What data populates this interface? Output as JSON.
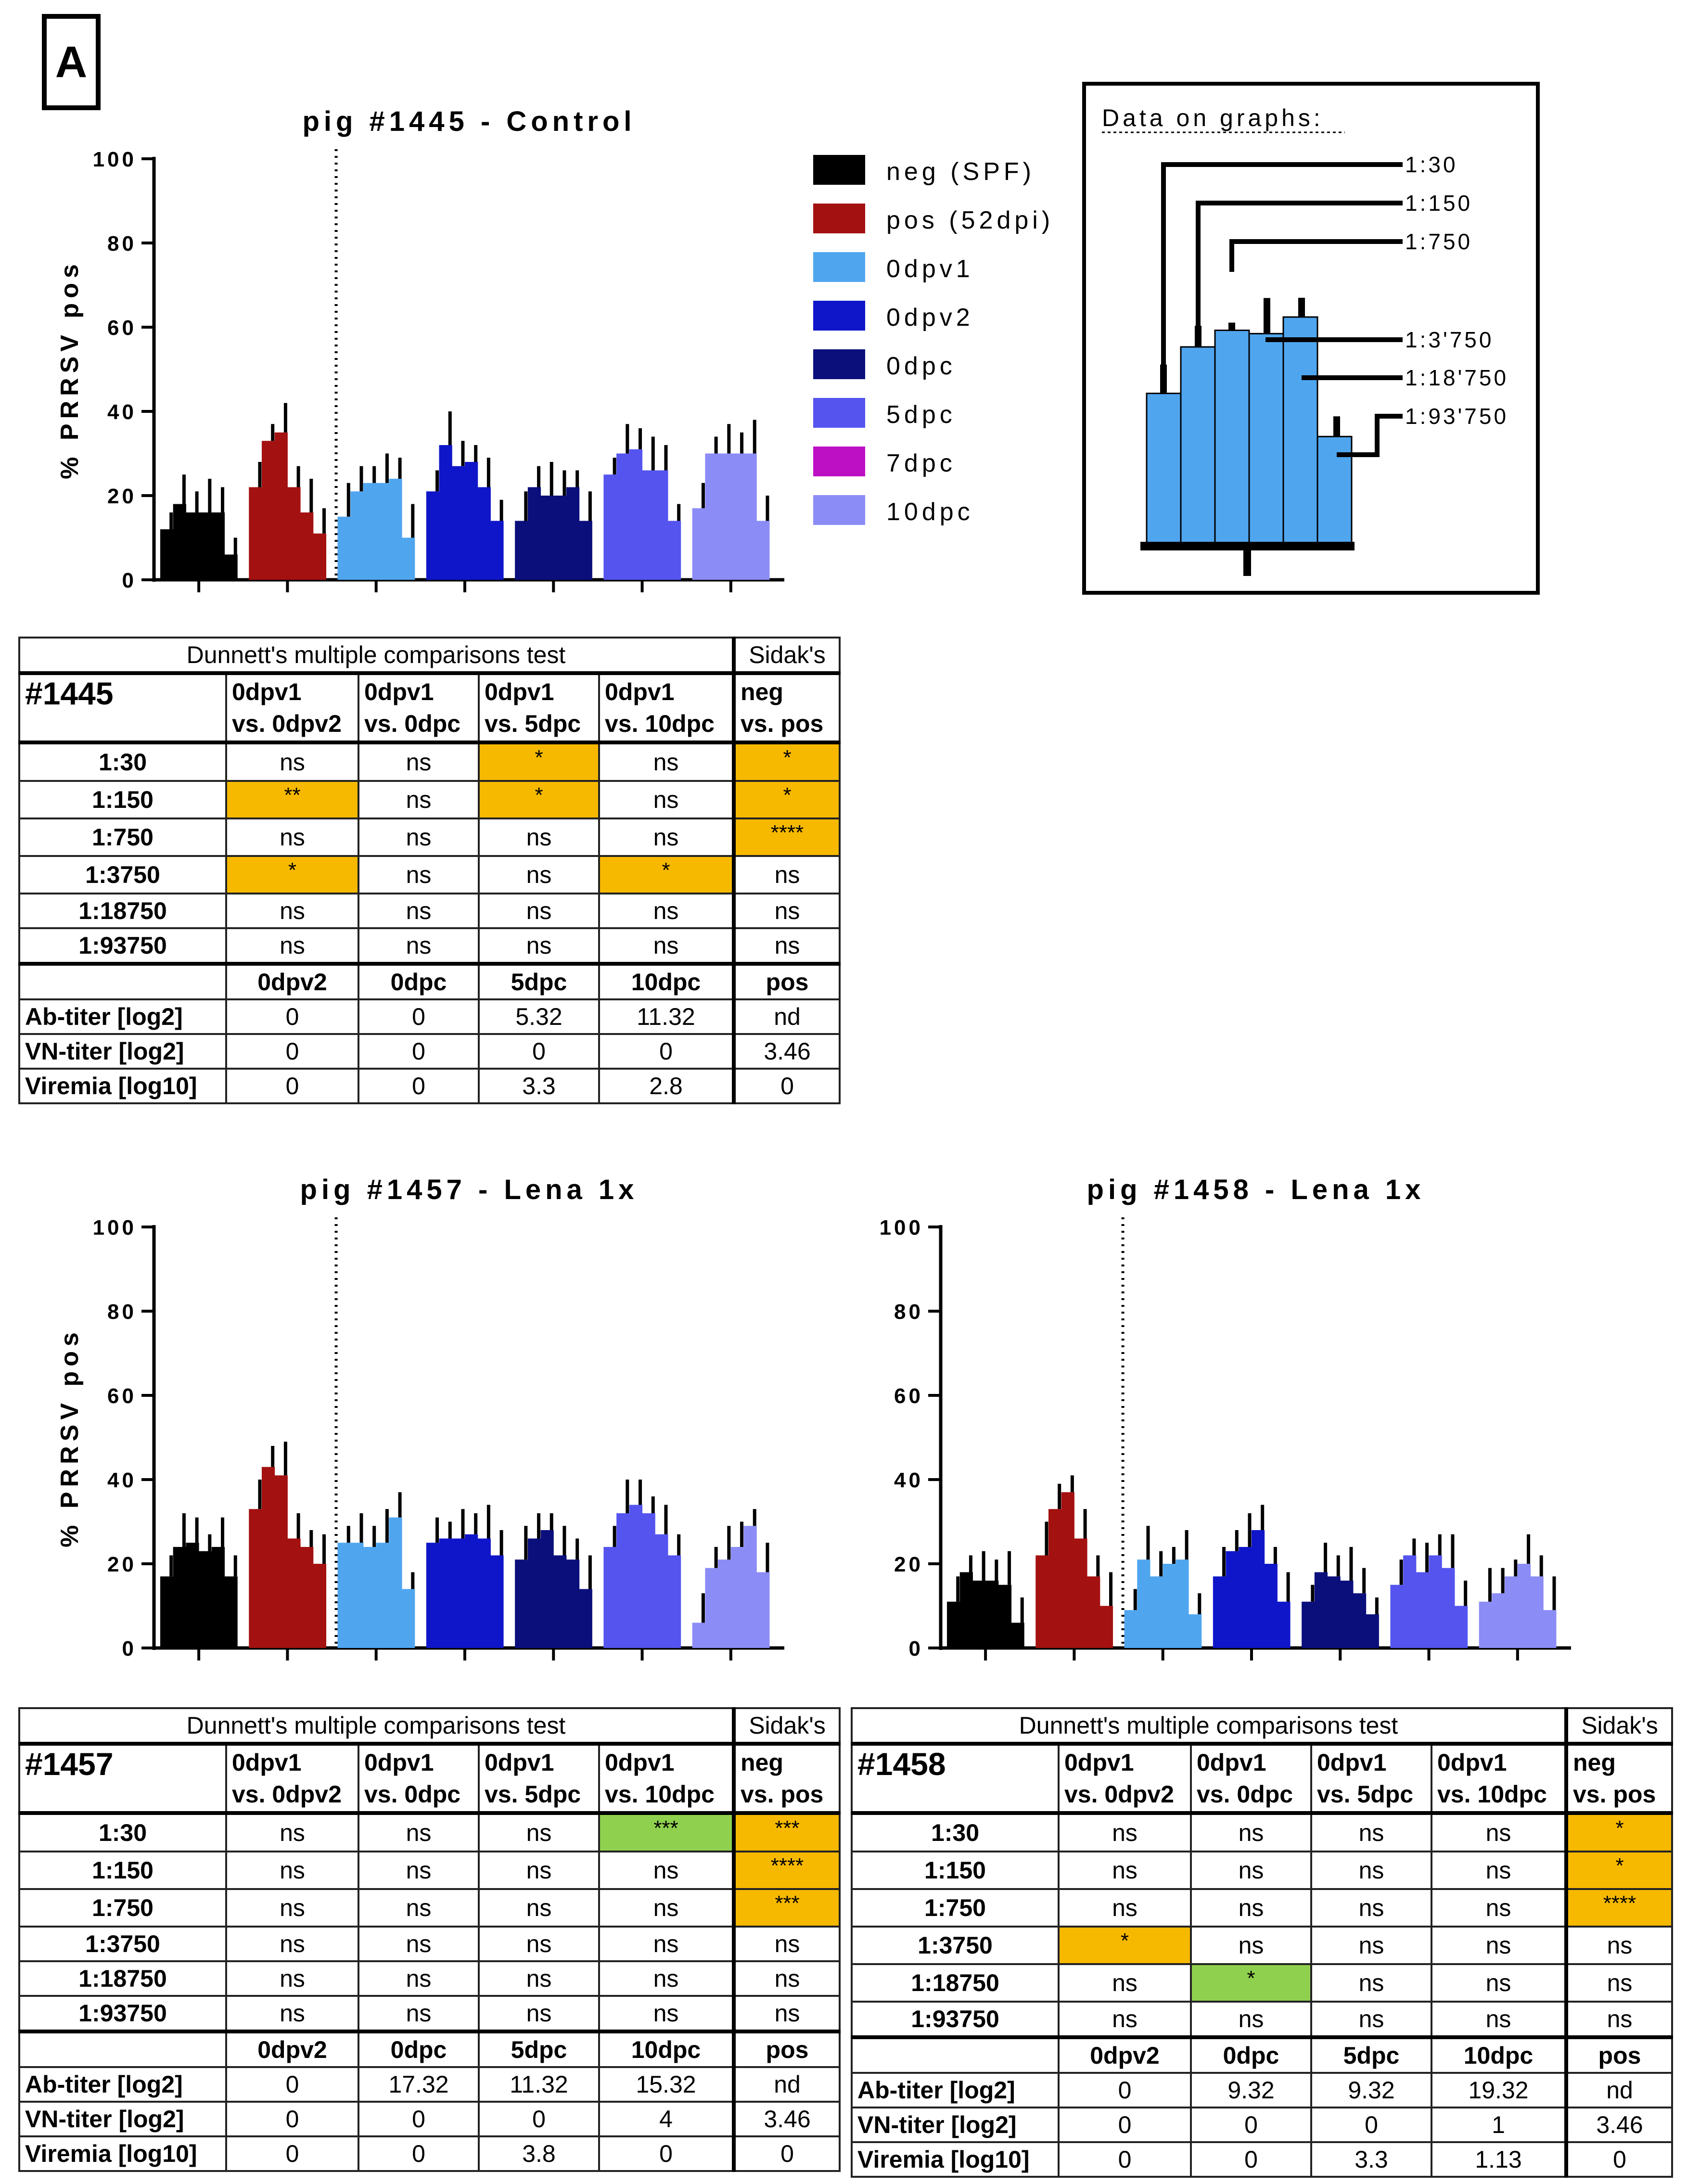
{
  "panel_label": "A",
  "colors": {
    "neg": "#000000",
    "pos": "#a41111",
    "0dpv1": "#4fa6ef",
    "0dpv2": "#0f16c9",
    "0dpc": "#0b0f7c",
    "5dpc": "#5554ef",
    "7dpc": "#bd10c4",
    "10dpc": "#8c8cf6",
    "orange": "#f7b900",
    "green": "#8fd14f"
  },
  "legend": {
    "items": [
      {
        "label": "neg (SPF)",
        "color": "#000000"
      },
      {
        "label": "pos (52dpi)",
        "color": "#a41111"
      },
      {
        "label": "0dpv1",
        "color": "#4fa6ef"
      },
      {
        "label": "0dpv2",
        "color": "#0f16c9"
      },
      {
        "label": "0dpc",
        "color": "#0b0f7c"
      },
      {
        "label": "5dpc",
        "color": "#5554ef"
      },
      {
        "label": "7dpc",
        "color": "#bd10c4"
      },
      {
        "label": "10dpc",
        "color": "#8c8cf6"
      }
    ]
  },
  "inset": {
    "title": "Data on graphs:",
    "labels": [
      "1:30",
      "1:150",
      "1:750",
      "1:3'750",
      "1:18'750",
      "1:93'750"
    ],
    "values": [
      46,
      60,
      65,
      64,
      69,
      33
    ]
  },
  "chart_data": [
    {
      "type": "bar",
      "title": "pig #1445 - Control",
      "ylabel": "% PRRSV pos",
      "ylim": [
        0,
        100
      ],
      "yticks": [
        "0",
        "20",
        "40",
        "60",
        "80",
        "100"
      ],
      "groups": [
        "neg",
        "pos",
        "0dpv1",
        "0dpv2",
        "0dpc",
        "5dpc",
        "10dpc"
      ],
      "dilutions": [
        "1:30",
        "1:150",
        "1:750",
        "1:3750",
        "1:18750",
        "1:93750"
      ],
      "series": [
        {
          "name": "neg (SPF)",
          "values": [
            12,
            18,
            16,
            16,
            16,
            6
          ]
        },
        {
          "name": "pos (52dpi)",
          "values": [
            22,
            33,
            35,
            22,
            16,
            11
          ]
        },
        {
          "name": "0dpv1",
          "values": [
            15,
            21,
            23,
            23,
            24,
            10
          ]
        },
        {
          "name": "0dpv2",
          "values": [
            21,
            32,
            27,
            28,
            22,
            14
          ]
        },
        {
          "name": "0dpc",
          "values": [
            14,
            22,
            20,
            20,
            22,
            14
          ]
        },
        {
          "name": "5dpc",
          "values": [
            25,
            30,
            31,
            26,
            26,
            14
          ]
        },
        {
          "name": "10dpc",
          "values": [
            17,
            30,
            30,
            30,
            30,
            14
          ]
        }
      ]
    },
    {
      "type": "bar",
      "title": "pig #1457 - Lena 1x",
      "ylabel": "% PRRSV pos",
      "ylim": [
        0,
        100
      ],
      "yticks": [
        "0",
        "20",
        "40",
        "60",
        "80",
        "100"
      ],
      "groups": [
        "neg",
        "pos",
        "0dpv1",
        "0dpv2",
        "0dpc",
        "5dpc",
        "10dpc"
      ],
      "dilutions": [
        "1:30",
        "1:150",
        "1:750",
        "1:3750",
        "1:18750",
        "1:93750"
      ],
      "series": [
        {
          "name": "neg (SPF)",
          "values": [
            17,
            24,
            25,
            23,
            24,
            17
          ]
        },
        {
          "name": "pos (52dpi)",
          "values": [
            33,
            43,
            41,
            26,
            24,
            20
          ]
        },
        {
          "name": "0dpv1",
          "values": [
            25,
            25,
            24,
            25,
            31,
            14
          ]
        },
        {
          "name": "0dpv2",
          "values": [
            25,
            26,
            26,
            27,
            26,
            22
          ]
        },
        {
          "name": "0dpc",
          "values": [
            21,
            26,
            28,
            22,
            21,
            14
          ]
        },
        {
          "name": "5dpc",
          "values": [
            24,
            32,
            34,
            32,
            27,
            22
          ]
        },
        {
          "name": "10dpc",
          "values": [
            6,
            19,
            21,
            24,
            29,
            18
          ]
        }
      ]
    },
    {
      "type": "bar",
      "title": "pig #1458 - Lena 1x",
      "ylabel": "",
      "ylim": [
        0,
        100
      ],
      "yticks": [
        "0",
        "20",
        "40",
        "60",
        "80",
        "100"
      ],
      "groups": [
        "neg",
        "pos",
        "0dpv1",
        "0dpv2",
        "0dpc",
        "5dpc",
        "10dpc"
      ],
      "dilutions": [
        "1:30",
        "1:150",
        "1:750",
        "1:3750",
        "1:18750",
        "1:93750"
      ],
      "series": [
        {
          "name": "neg (SPF)",
          "values": [
            11,
            18,
            16,
            16,
            15,
            6
          ]
        },
        {
          "name": "pos (52dpi)",
          "values": [
            22,
            33,
            37,
            26,
            17,
            10
          ]
        },
        {
          "name": "0dpv1",
          "values": [
            9,
            21,
            17,
            20,
            21,
            8
          ]
        },
        {
          "name": "0dpv2",
          "values": [
            17,
            23,
            24,
            28,
            20,
            11
          ]
        },
        {
          "name": "0dpc",
          "values": [
            11,
            18,
            17,
            16,
            13,
            8
          ]
        },
        {
          "name": "5dpc",
          "values": [
            15,
            22,
            18,
            22,
            19,
            10
          ]
        },
        {
          "name": "10dpc",
          "values": [
            11,
            13,
            17,
            20,
            17,
            9
          ]
        }
      ]
    }
  ],
  "tables": [
    {
      "pig": "#1445",
      "dunnett_title": "Dunnett's multiple comparisons test",
      "sidak_title": "Sidak's",
      "comparisons": [
        [
          "0dpv1",
          "vs. 0dpv2"
        ],
        [
          "0dpv1",
          "vs. 0dpc"
        ],
        [
          "0dpv1",
          "vs. 5dpc"
        ],
        [
          "0dpv1",
          "vs. 10dpc"
        ],
        [
          "neg",
          "vs. pos"
        ]
      ],
      "rows": [
        {
          "label": "1:30",
          "cells": [
            "ns",
            "ns",
            "*",
            "ns",
            "*"
          ],
          "hl": [
            "",
            "",
            "orange",
            "",
            "orange"
          ]
        },
        {
          "label": "1:150",
          "cells": [
            "**",
            "ns",
            "*",
            "ns",
            "*"
          ],
          "hl": [
            "orange",
            "",
            "orange",
            "",
            "orange"
          ]
        },
        {
          "label": "1:750",
          "cells": [
            "ns",
            "ns",
            "ns",
            "ns",
            "****"
          ],
          "hl": [
            "",
            "",
            "",
            "",
            "orange"
          ]
        },
        {
          "label": "1:3750",
          "cells": [
            "*",
            "ns",
            "ns",
            "*",
            "ns"
          ],
          "hl": [
            "orange",
            "",
            "",
            "orange",
            ""
          ]
        },
        {
          "label": "1:18750",
          "cells": [
            "ns",
            "ns",
            "ns",
            "ns",
            "ns"
          ],
          "hl": [
            "",
            "",
            "",
            "",
            ""
          ]
        },
        {
          "label": "1:93750",
          "cells": [
            "ns",
            "ns",
            "ns",
            "ns",
            "ns"
          ],
          "hl": [
            "",
            "",
            "",
            "",
            ""
          ]
        }
      ],
      "time_header": [
        "0dpv2",
        "0dpc",
        "5dpc",
        "10dpc",
        "pos"
      ],
      "metrics": [
        {
          "label": "Ab-titer [log2]",
          "values": [
            "0",
            "0",
            "5.32",
            "11.32",
            "nd"
          ]
        },
        {
          "label": "VN-titer [log2]",
          "values": [
            "0",
            "0",
            "0",
            "0",
            "3.46"
          ]
        },
        {
          "label": "Viremia [log10]",
          "values": [
            "0",
            "0",
            "3.3",
            "2.8",
            "0"
          ]
        }
      ]
    },
    {
      "pig": "#1457",
      "dunnett_title": "Dunnett's multiple comparisons test",
      "sidak_title": "Sidak's",
      "comparisons": [
        [
          "0dpv1",
          "vs. 0dpv2"
        ],
        [
          "0dpv1",
          "vs. 0dpc"
        ],
        [
          "0dpv1",
          "vs. 5dpc"
        ],
        [
          "0dpv1",
          "vs. 10dpc"
        ],
        [
          "neg",
          "vs. pos"
        ]
      ],
      "rows": [
        {
          "label": "1:30",
          "cells": [
            "ns",
            "ns",
            "ns",
            "***",
            "***"
          ],
          "hl": [
            "",
            "",
            "",
            "green",
            "orange"
          ]
        },
        {
          "label": "1:150",
          "cells": [
            "ns",
            "ns",
            "ns",
            "ns",
            "****"
          ],
          "hl": [
            "",
            "",
            "",
            "",
            "orange"
          ]
        },
        {
          "label": "1:750",
          "cells": [
            "ns",
            "ns",
            "ns",
            "ns",
            "***"
          ],
          "hl": [
            "",
            "",
            "",
            "",
            "orange"
          ]
        },
        {
          "label": "1:3750",
          "cells": [
            "ns",
            "ns",
            "ns",
            "ns",
            "ns"
          ],
          "hl": [
            "",
            "",
            "",
            "",
            ""
          ]
        },
        {
          "label": "1:18750",
          "cells": [
            "ns",
            "ns",
            "ns",
            "ns",
            "ns"
          ],
          "hl": [
            "",
            "",
            "",
            "",
            ""
          ]
        },
        {
          "label": "1:93750",
          "cells": [
            "ns",
            "ns",
            "ns",
            "ns",
            "ns"
          ],
          "hl": [
            "",
            "",
            "",
            "",
            ""
          ]
        }
      ],
      "time_header": [
        "0dpv2",
        "0dpc",
        "5dpc",
        "10dpc",
        "pos"
      ],
      "metrics": [
        {
          "label": "Ab-titer [log2]",
          "values": [
            "0",
            "17.32",
            "11.32",
            "15.32",
            "nd"
          ]
        },
        {
          "label": "VN-titer [log2]",
          "values": [
            "0",
            "0",
            "0",
            "4",
            "3.46"
          ]
        },
        {
          "label": "Viremia [log10]",
          "values": [
            "0",
            "0",
            "3.8",
            "0",
            "0"
          ]
        }
      ]
    },
    {
      "pig": "#1458",
      "dunnett_title": "Dunnett's multiple comparisons test",
      "sidak_title": "Sidak's",
      "comparisons": [
        [
          "0dpv1",
          "vs. 0dpv2"
        ],
        [
          "0dpv1",
          "vs. 0dpc"
        ],
        [
          "0dpv1",
          "vs. 5dpc"
        ],
        [
          "0dpv1",
          "vs. 10dpc"
        ],
        [
          "neg",
          "vs. pos"
        ]
      ],
      "rows": [
        {
          "label": "1:30",
          "cells": [
            "ns",
            "ns",
            "ns",
            "ns",
            "*"
          ],
          "hl": [
            "",
            "",
            "",
            "",
            "orange"
          ]
        },
        {
          "label": "1:150",
          "cells": [
            "ns",
            "ns",
            "ns",
            "ns",
            "*"
          ],
          "hl": [
            "",
            "",
            "",
            "",
            "orange"
          ]
        },
        {
          "label": "1:750",
          "cells": [
            "ns",
            "ns",
            "ns",
            "ns",
            "****"
          ],
          "hl": [
            "",
            "",
            "",
            "",
            "orange"
          ]
        },
        {
          "label": "1:3750",
          "cells": [
            "*",
            "ns",
            "ns",
            "ns",
            "ns"
          ],
          "hl": [
            "orange",
            "",
            "",
            "",
            ""
          ]
        },
        {
          "label": "1:18750",
          "cells": [
            "ns",
            "*",
            "ns",
            "ns",
            "ns"
          ],
          "hl": [
            "",
            "green",
            "",
            "",
            ""
          ]
        },
        {
          "label": "1:93750",
          "cells": [
            "ns",
            "ns",
            "ns",
            "ns",
            "ns"
          ],
          "hl": [
            "",
            "",
            "",
            "",
            ""
          ]
        }
      ],
      "time_header": [
        "0dpv2",
        "0dpc",
        "5dpc",
        "10dpc",
        "pos"
      ],
      "metrics": [
        {
          "label": "Ab-titer [log2]",
          "values": [
            "0",
            "9.32",
            "9.32",
            "19.32",
            "nd"
          ]
        },
        {
          "label": "VN-titer [log2]",
          "values": [
            "0",
            "0",
            "0",
            "1",
            "3.46"
          ]
        },
        {
          "label": "Viremia [log10]",
          "values": [
            "0",
            "0",
            "3.3",
            "1.13",
            "0"
          ]
        }
      ]
    }
  ]
}
